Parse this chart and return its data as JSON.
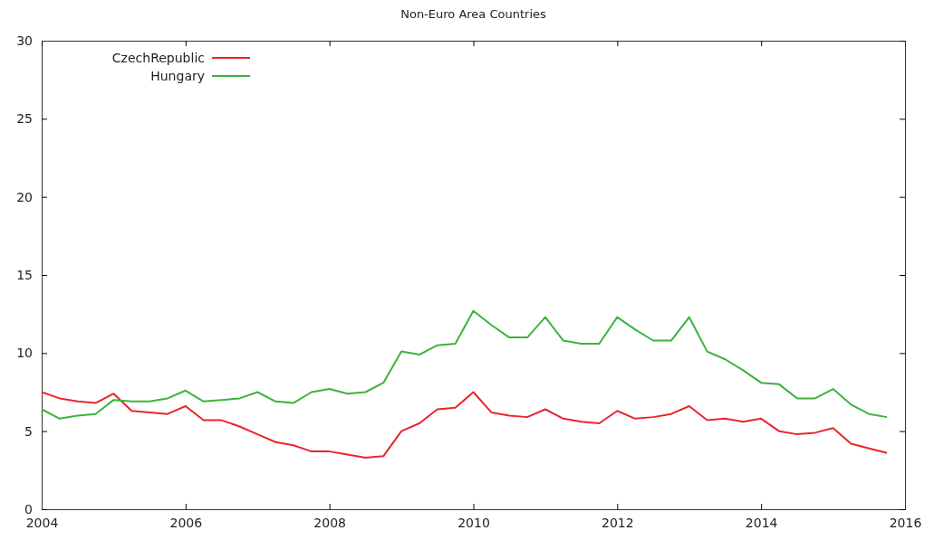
{
  "chart_data": {
    "type": "line",
    "title": "Non-Euro Area Countries",
    "x": [
      2004,
      2004.25,
      2004.5,
      2004.75,
      2005,
      2005.25,
      2005.5,
      2005.75,
      2006,
      2006.25,
      2006.5,
      2006.75,
      2007,
      2007.25,
      2007.5,
      2007.75,
      2008,
      2008.25,
      2008.5,
      2008.75,
      2009,
      2009.25,
      2009.5,
      2009.75,
      2010,
      2010.25,
      2010.5,
      2010.75,
      2011,
      2011.25,
      2011.5,
      2011.75,
      2012,
      2012.25,
      2012.5,
      2012.75,
      2013,
      2013.25,
      2013.5,
      2013.75,
      2014,
      2014.25,
      2014.5,
      2014.75,
      2015,
      2015.25,
      2015.5,
      2015.75
    ],
    "series": [
      {
        "name": "CzechRepublic",
        "color": "#e8262b",
        "values": [
          7.5,
          7.1,
          6.9,
          6.8,
          7.4,
          6.3,
          6.2,
          6.1,
          6.6,
          5.7,
          5.7,
          5.3,
          4.8,
          4.3,
          4.1,
          3.7,
          3.7,
          3.5,
          3.3,
          3.4,
          5.0,
          5.5,
          6.4,
          6.5,
          7.5,
          6.2,
          6.0,
          5.9,
          6.4,
          5.8,
          5.6,
          5.5,
          6.3,
          5.8,
          5.9,
          6.1,
          6.6,
          5.7,
          5.8,
          5.6,
          5.8,
          5.0,
          4.8,
          4.9,
          5.2,
          4.2,
          3.9,
          3.6
        ]
      },
      {
        "name": "Hungary",
        "color": "#3db33d",
        "values": [
          6.4,
          5.8,
          6.0,
          6.1,
          7.0,
          6.9,
          6.9,
          7.1,
          7.6,
          6.9,
          7.0,
          7.1,
          7.5,
          6.9,
          6.8,
          7.5,
          7.7,
          7.4,
          7.5,
          8.1,
          10.1,
          9.9,
          10.5,
          10.6,
          12.7,
          11.8,
          11.0,
          11.0,
          12.3,
          10.8,
          10.6,
          10.6,
          12.3,
          11.5,
          10.8,
          10.8,
          12.3,
          10.1,
          9.6,
          8.9,
          8.1,
          8.0,
          7.1,
          7.1,
          7.7,
          6.7,
          6.1,
          5.9
        ]
      }
    ],
    "xlim": [
      2004,
      2016
    ],
    "xticks": [
      2004,
      2006,
      2008,
      2010,
      2012,
      2014,
      2016
    ],
    "ylim": [
      0,
      30
    ],
    "yticks": [
      0,
      5,
      10,
      15,
      20,
      25,
      30
    ],
    "grid": false,
    "legend": "top left",
    "marker": "none",
    "line_style": "solid"
  }
}
